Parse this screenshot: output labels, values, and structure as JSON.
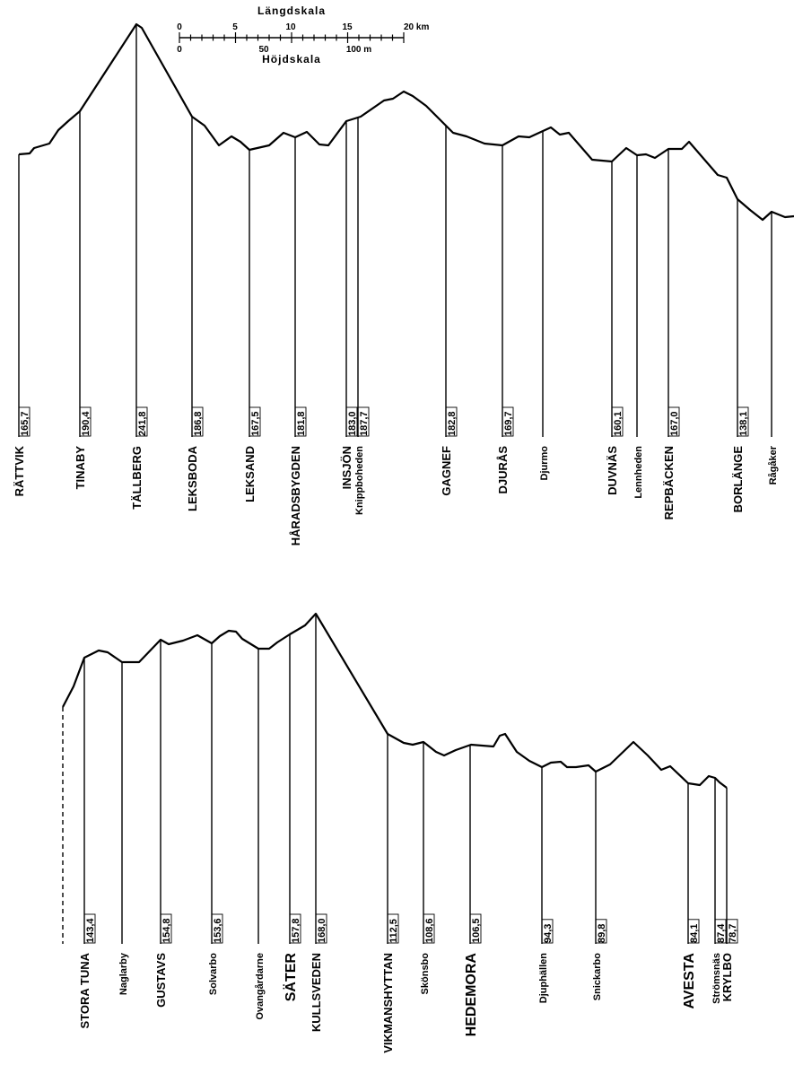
{
  "chart_data": [
    {
      "type": "line",
      "segment": "Rättvik – Borlänge",
      "stations": [
        {
          "name": "RÄTTVIK",
          "elev": "165,7",
          "major": true
        },
        {
          "name": "TINABY",
          "elev": "190,4",
          "major": true
        },
        {
          "name": "TÄLLBERG",
          "elev": "241,8",
          "major": true
        },
        {
          "name": "LEKSBODA",
          "elev": "186,8",
          "major": true
        },
        {
          "name": "LEKSAND",
          "elev": "167,5",
          "major": true
        },
        {
          "name": "HÅRADSBYGDEN",
          "elev": "181,8",
          "major": true
        },
        {
          "name": "INSJÖN",
          "elev": "183,0",
          "major": true
        },
        {
          "name": "Knippboheden",
          "elev": "187,7",
          "major": false
        },
        {
          "name": "GAGNEF",
          "elev": "182,8",
          "major": true
        },
        {
          "name": "DJURÅS",
          "elev": "169,7",
          "major": true
        },
        {
          "name": "Djurmo",
          "elev": "",
          "major": false
        },
        {
          "name": "DUVNÄS",
          "elev": "160,1",
          "major": true
        },
        {
          "name": "Lennheden",
          "elev": "",
          "major": false
        },
        {
          "name": "REPBÄCKEN",
          "elev": "167,0",
          "major": true
        },
        {
          "name": "BORLÄNGE",
          "elev": "138,1",
          "major": true
        },
        {
          "name": "Rågåker",
          "elev": "",
          "major": false
        }
      ]
    },
    {
      "type": "line",
      "segment": "Stora Tuna – Krylbo",
      "stations": [
        {
          "name": "STORA TUNA",
          "elev": "143,4",
          "major": true
        },
        {
          "name": "Naglarby",
          "elev": "",
          "major": false
        },
        {
          "name": "GUSTAVS",
          "elev": "154,8",
          "major": true
        },
        {
          "name": "Solvarbo",
          "elev": "153,6",
          "major": false
        },
        {
          "name": "Ovangårdarne",
          "elev": "",
          "major": false
        },
        {
          "name": "SÄTER",
          "elev": "157,8",
          "major": true,
          "big": true
        },
        {
          "name": "KULLSVEDEN",
          "elev": "168,0",
          "major": true
        },
        {
          "name": "VIKMANSHYTTAN",
          "elev": "112,5",
          "major": true
        },
        {
          "name": "Skönsbo",
          "elev": "108,6",
          "major": false
        },
        {
          "name": "HEDEMORA",
          "elev": "106,5",
          "major": true,
          "big": true
        },
        {
          "name": "Djuphällen",
          "elev": "94,3",
          "major": false
        },
        {
          "name": "Snickarbo",
          "elev": "89,8",
          "major": false
        },
        {
          "name": "AVESTA",
          "elev": "84,1",
          "major": true,
          "big": true
        },
        {
          "name": "Strömsnäs",
          "elev": "87,4",
          "major": false
        },
        {
          "name": "KRYLBO",
          "elev": "78,7",
          "major": true
        }
      ]
    }
  ],
  "scale": {
    "length_title": "Längdskala",
    "length_ticks": [
      "0",
      "5",
      "10",
      "15",
      "20 km"
    ],
    "height_title": "Höjdskala",
    "height_ticks": [
      "0",
      "50",
      "100 m"
    ]
  }
}
